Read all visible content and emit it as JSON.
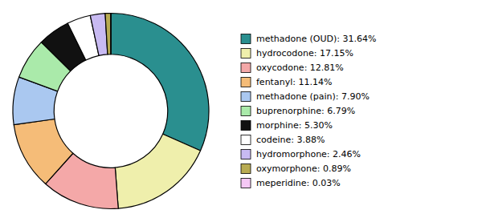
{
  "chart_data": {
    "type": "donut",
    "categories": [
      "methadone (OUD): 31.64%",
      "hydrocodone: 17.15%",
      "oxycodone: 12.81%",
      "fentanyl: 11.14%",
      "methadone (pain): 7.90%",
      "buprenorphine: 6.79%",
      "morphine: 5.30%",
      "codeine: 3.88%",
      "hydromorphone: 2.46%",
      "oxymorphone: 0.89%",
      "meperidine: 0.03%"
    ],
    "values": [
      31.64,
      17.15,
      12.81,
      11.14,
      7.9,
      6.79,
      5.3,
      3.88,
      2.46,
      0.89,
      0.03
    ],
    "colors": [
      "#2a8f8f",
      "#efefac",
      "#f4a8a8",
      "#f5bc78",
      "#aac8f0",
      "#aaeaaa",
      "#111111",
      "#ffffff",
      "#c8baf2",
      "#b8ab52",
      "#f5c8f5"
    ],
    "legend": "right"
  }
}
